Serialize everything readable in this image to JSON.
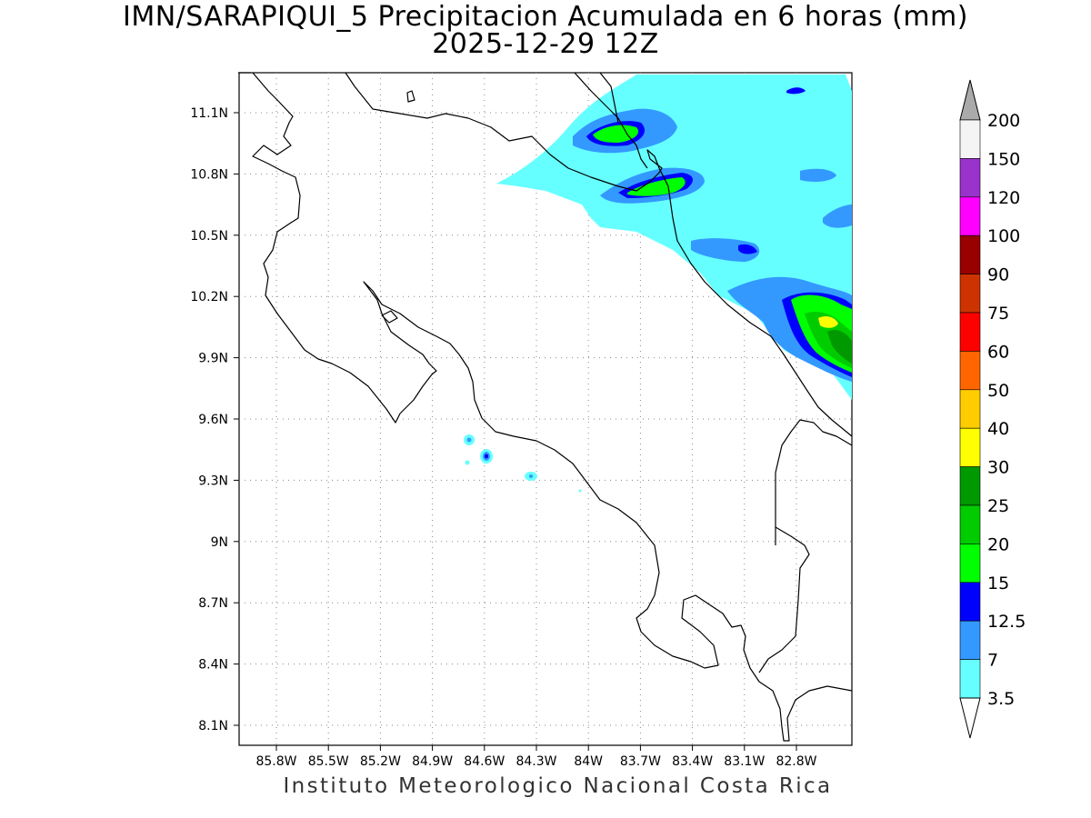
{
  "title": {
    "line1": "IMN/SARAPIQUI_5 Precipitacion Acumulada en 6 horas (mm)",
    "line2": "2025-12-29 12Z"
  },
  "footer": "Instituto Meteorologico Nacional Costa Rica",
  "map": {
    "lon_range": [
      -86.05,
      -82.6
    ],
    "lat_range": [
      7.9,
      11.3
    ],
    "lat_labels": [
      "11.1N",
      "10.8N",
      "10.5N",
      "10.2N",
      "9.9N",
      "9.6N",
      "9.3N",
      "9N",
      "8.7N",
      "8.4N",
      "8.1N"
    ],
    "lon_labels": [
      "85.8W",
      "85.5W",
      "85.2W",
      "84.9W",
      "84.6W",
      "84.3W",
      "84W",
      "83.7W",
      "83.4W",
      "83.1W",
      "82.8W"
    ],
    "grid": true
  },
  "colorbar": {
    "labels": [
      "200",
      "150",
      "120",
      "100",
      "90",
      "75",
      "60",
      "50",
      "40",
      "30",
      "25",
      "20",
      "15",
      "12.5",
      "7",
      "3.5"
    ],
    "colors": [
      "#f4f4f4",
      "#9933cc",
      "#ff00ff",
      "#990000",
      "#cc3300",
      "#ff0000",
      "#ff6600",
      "#ffcc00",
      "#ffff00",
      "#009900",
      "#00cc00",
      "#00ff00",
      "#0000ff",
      "#3399ff",
      "#66ffff"
    ],
    "top_arrow_color": "#aaaaaa",
    "bottom_arrow_color": "#ffffff"
  }
}
